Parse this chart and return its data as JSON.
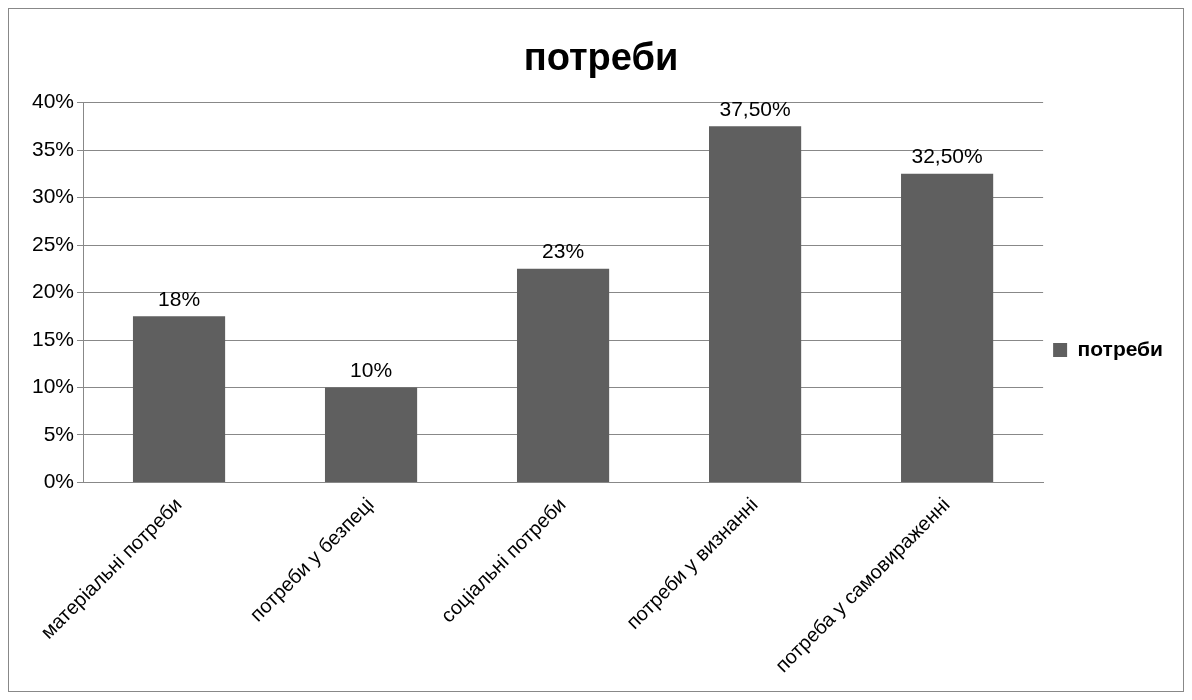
{
  "chart_data": {
    "type": "bar",
    "title": "потреби",
    "categories": [
      "матеріальні потреби",
      "потреби у безпеці",
      "соціальні потреби",
      "потреби у визнанні",
      "потреба у самовираженні"
    ],
    "series": [
      {
        "name": "потреби",
        "color": "#5f5f5f",
        "values": [
          17.5,
          10,
          22.5,
          37.5,
          32.5
        ],
        "value_labels": [
          "18%",
          "10%",
          "23%",
          "37,50%",
          "32,50%"
        ]
      }
    ],
    "ylim": [
      0,
      40
    ],
    "yticks": [
      {
        "value": 0,
        "label": "0%"
      },
      {
        "value": 5,
        "label": "5%"
      },
      {
        "value": 10,
        "label": "10%"
      },
      {
        "value": 15,
        "label": "15%"
      },
      {
        "value": 20,
        "label": "20%"
      },
      {
        "value": 25,
        "label": "25%"
      },
      {
        "value": 30,
        "label": "30%"
      },
      {
        "value": 35,
        "label": "35%"
      },
      {
        "value": 40,
        "label": "40%"
      }
    ],
    "grid": "y",
    "legend": "right"
  }
}
